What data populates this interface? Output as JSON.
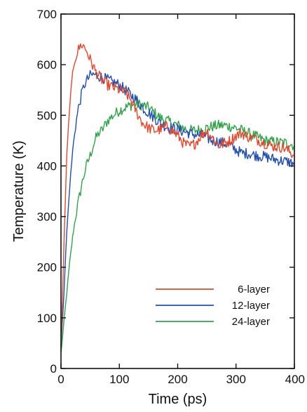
{
  "chart_data": {
    "type": "line",
    "title": "",
    "xlabel": "Time (ps)",
    "ylabel": "Temperature (K)",
    "xlim": [
      0,
      400
    ],
    "ylim": [
      0,
      700
    ],
    "xticks": [
      0,
      100,
      200,
      300,
      400
    ],
    "yticks": [
      0,
      100,
      200,
      300,
      400,
      500,
      600,
      700
    ],
    "grid": false,
    "legend_position": "bottom-right",
    "series": [
      {
        "name": "6-layer",
        "color": "#e8452a",
        "x": [
          0,
          5,
          10,
          15,
          20,
          25,
          30,
          35,
          40,
          45,
          50,
          60,
          70,
          80,
          90,
          100,
          110,
          120,
          130,
          140,
          150,
          160,
          170,
          180,
          190,
          200,
          210,
          220,
          230,
          240,
          250,
          260,
          270,
          280,
          290,
          300,
          310,
          320,
          330,
          340,
          350,
          360,
          370,
          380,
          390,
          400
        ],
        "y": [
          40,
          240,
          420,
          520,
          585,
          615,
          630,
          640,
          635,
          625,
          610,
          585,
          570,
          560,
          555,
          550,
          545,
          530,
          505,
          485,
          475,
          470,
          472,
          478,
          470,
          460,
          445,
          438,
          445,
          460,
          470,
          455,
          440,
          445,
          450,
          460,
          465,
          458,
          455,
          450,
          445,
          440,
          438,
          437,
          430,
          420
        ]
      },
      {
        "name": "12-layer",
        "color": "#1f4fb0",
        "x": [
          0,
          5,
          10,
          15,
          20,
          25,
          30,
          35,
          40,
          45,
          50,
          55,
          60,
          70,
          80,
          90,
          100,
          110,
          120,
          130,
          140,
          150,
          160,
          170,
          180,
          190,
          200,
          210,
          220,
          230,
          240,
          250,
          260,
          270,
          280,
          290,
          300,
          310,
          320,
          330,
          340,
          350,
          360,
          370,
          380,
          390,
          400
        ],
        "y": [
          40,
          150,
          270,
          360,
          430,
          480,
          515,
          540,
          560,
          570,
          578,
          580,
          580,
          575,
          570,
          565,
          560,
          550,
          540,
          530,
          515,
          505,
          495,
          485,
          478,
          475,
          472,
          468,
          465,
          462,
          460,
          455,
          450,
          448,
          445,
          440,
          432,
          425,
          425,
          422,
          420,
          418,
          415,
          412,
          410,
          408,
          405
        ]
      },
      {
        "name": "24-layer",
        "color": "#2fa44a",
        "x": [
          0,
          5,
          10,
          15,
          20,
          25,
          30,
          35,
          40,
          45,
          50,
          55,
          60,
          65,
          70,
          75,
          80,
          85,
          90,
          95,
          100,
          110,
          120,
          130,
          140,
          150,
          160,
          170,
          180,
          190,
          200,
          210,
          220,
          230,
          240,
          250,
          260,
          270,
          280,
          290,
          300,
          310,
          320,
          330,
          340,
          350,
          360,
          370,
          380,
          390,
          400
        ],
        "y": [
          30,
          90,
          150,
          210,
          260,
          300,
          330,
          360,
          385,
          405,
          420,
          440,
          455,
          465,
          470,
          480,
          490,
          495,
          500,
          505,
          510,
          515,
          520,
          522,
          520,
          515,
          505,
          495,
          490,
          485,
          480,
          475,
          470,
          470,
          472,
          475,
          478,
          480,
          480,
          478,
          475,
          470,
          465,
          460,
          455,
          450,
          448,
          447,
          446,
          445,
          440
        ]
      }
    ]
  }
}
